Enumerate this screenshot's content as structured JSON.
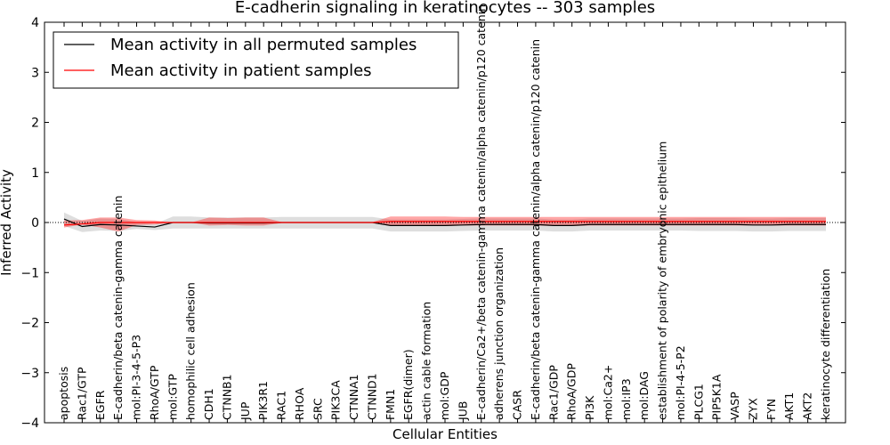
{
  "chart_data": {
    "type": "line",
    "title": "E-cadherin signaling in keratinocytes -- 303 samples",
    "xlabel": "Cellular Entities",
    "ylabel": "Inferred Activity",
    "ylim": [
      -4,
      4
    ],
    "yticks": [
      -4,
      -3,
      -2,
      -1,
      0,
      1,
      2,
      3,
      4
    ],
    "ytick_labels": [
      "−4",
      "−3",
      "−2",
      "−1",
      "0",
      "1",
      "2",
      "3",
      "4"
    ],
    "legend_position": "top-left",
    "categories": [
      "apoptosis",
      "Rac1/GTP",
      "EGFR",
      "E-cadherin/beta catenin-gamma catenin",
      "mol:PI-3-4-5-P3",
      "RhoA/GTP",
      "mol:GTP",
      "homophilic cell adhesion",
      "CDH1",
      "CTNNB1",
      "JUP",
      "PIK3R1",
      "RAC1",
      "RHOA",
      "SRC",
      "PIK3CA",
      "CTNNA1",
      "CTNND1",
      "FMN1",
      "EGFR(dimer)",
      "actin cable formation",
      "mol:GDP",
      "JUB",
      "E-cadherin/Ca2+/beta catenin-gamma catenin/alpha catenin/p120 catenin",
      "adherens junction organization",
      "CASR",
      "E-cadherin/beta catenin-gamma catenin/alpha catenin/p120 catenin",
      "Rac1/GDP",
      "RhoA/GDP",
      "PI3K",
      "mol:Ca2+",
      "mol:IP3",
      "mol:DAG",
      "establishment of polarity of embryonic epithelium",
      "mol:PI-4-5-P2",
      "PLCG1",
      "PIP5K1A",
      "VASP",
      "ZYX",
      "FYN",
      "AKT1",
      "AKT2",
      "keratinocyte differentiation"
    ],
    "series": [
      {
        "name": "Mean activity in all permuted samples",
        "color": "#000000",
        "values": [
          0.07,
          -0.08,
          -0.04,
          -0.05,
          -0.07,
          -0.09,
          0.0,
          0.0,
          -0.01,
          -0.01,
          -0.01,
          -0.01,
          0.0,
          0.0,
          0.0,
          0.0,
          0.0,
          0.0,
          -0.06,
          -0.06,
          -0.06,
          -0.06,
          -0.05,
          -0.04,
          -0.04,
          -0.04,
          -0.04,
          -0.06,
          -0.06,
          -0.04,
          -0.04,
          -0.04,
          -0.04,
          -0.04,
          -0.04,
          -0.04,
          -0.04,
          -0.04,
          -0.05,
          -0.05,
          -0.04,
          -0.04,
          -0.04
        ],
        "band_lower": [
          -0.07,
          -0.19,
          -0.16,
          -0.17,
          -0.13,
          -0.15,
          -0.12,
          -0.12,
          -0.12,
          -0.12,
          -0.12,
          -0.12,
          -0.12,
          -0.12,
          -0.12,
          -0.12,
          -0.12,
          -0.12,
          -0.18,
          -0.18,
          -0.18,
          -0.18,
          -0.17,
          -0.16,
          -0.16,
          -0.16,
          -0.16,
          -0.18,
          -0.18,
          -0.16,
          -0.16,
          -0.16,
          -0.16,
          -0.16,
          -0.16,
          -0.17,
          -0.17,
          -0.17,
          -0.18,
          -0.18,
          -0.17,
          -0.17,
          -0.17
        ],
        "band_upper": [
          0.2,
          0.03,
          0.08,
          0.07,
          0.01,
          -0.03,
          0.12,
          0.12,
          0.1,
          0.1,
          0.1,
          0.1,
          0.11,
          0.11,
          0.11,
          0.11,
          0.11,
          0.11,
          0.06,
          0.06,
          0.06,
          0.06,
          0.07,
          0.08,
          0.08,
          0.08,
          0.08,
          0.06,
          0.06,
          0.08,
          0.08,
          0.08,
          0.08,
          0.08,
          0.08,
          0.09,
          0.09,
          0.09,
          0.08,
          0.08,
          0.09,
          0.09,
          0.09
        ]
      },
      {
        "name": "Mean activity in patient samples",
        "color": "#ff0000",
        "values": [
          -0.05,
          -0.03,
          0.0,
          0.0,
          0.0,
          0.0,
          0.0,
          0.0,
          0.0,
          0.0,
          0.0,
          0.0,
          0.0,
          0.0,
          0.0,
          0.0,
          0.0,
          0.0,
          0.02,
          0.02,
          0.02,
          0.02,
          0.02,
          0.02,
          0.02,
          0.02,
          0.02,
          0.02,
          0.02,
          0.02,
          0.02,
          0.02,
          0.02,
          0.02,
          0.02,
          0.02,
          0.02,
          0.02,
          0.02,
          0.02,
          0.02,
          0.02,
          0.02
        ],
        "band_lower": [
          -0.1,
          -0.04,
          -0.1,
          -0.18,
          -0.05,
          -0.04,
          0.0,
          0.0,
          -0.06,
          -0.05,
          -0.06,
          -0.06,
          -0.01,
          -0.01,
          -0.01,
          -0.01,
          -0.01,
          -0.01,
          -0.07,
          -0.07,
          -0.07,
          -0.07,
          -0.06,
          -0.06,
          -0.06,
          -0.06,
          -0.06,
          -0.07,
          -0.07,
          -0.06,
          -0.06,
          -0.06,
          -0.06,
          -0.06,
          -0.06,
          -0.06,
          -0.06,
          -0.06,
          -0.06,
          -0.06,
          -0.06,
          -0.06,
          -0.06
        ],
        "band_upper": [
          0.04,
          0.05,
          0.1,
          0.1,
          0.05,
          0.04,
          0.0,
          0.0,
          0.1,
          0.09,
          0.1,
          0.1,
          0.01,
          0.01,
          0.01,
          0.01,
          0.01,
          0.01,
          0.12,
          0.12,
          0.12,
          0.12,
          0.11,
          0.11,
          0.11,
          0.11,
          0.11,
          0.11,
          0.11,
          0.11,
          0.11,
          0.11,
          0.11,
          0.11,
          0.11,
          0.11,
          0.11,
          0.11,
          0.11,
          0.11,
          0.11,
          0.11,
          0.11
        ]
      }
    ],
    "zero_line": true
  }
}
